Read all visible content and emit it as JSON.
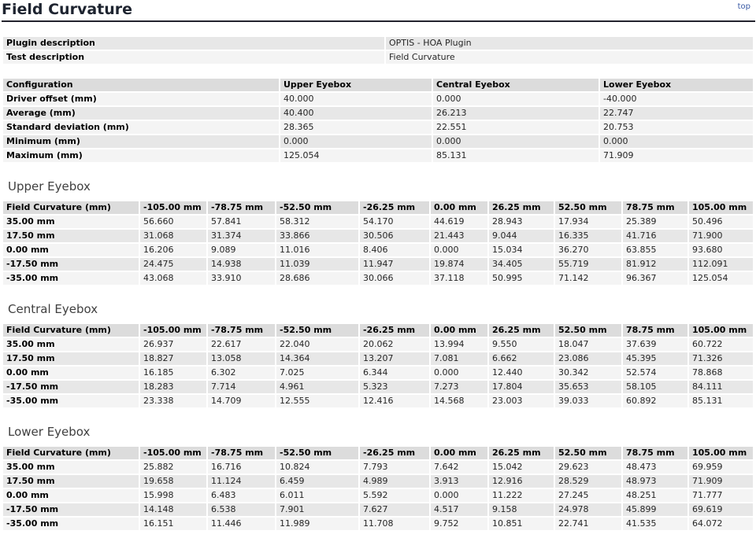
{
  "page": {
    "title": "Field Curvature",
    "top_link": "top"
  },
  "colors": {
    "title": "#1e2430",
    "link": "#3b5ba5",
    "header_row_bg": "#dcdcdc",
    "row_light_bg": "#f4f4f4",
    "row_dark_bg": "#e7e7e7"
  },
  "description_table": {
    "rows": [
      {
        "label": "Plugin description",
        "values": [
          "OPTIS - HOA Plugin"
        ]
      },
      {
        "label": "Test description",
        "values": [
          "Field Curvature"
        ]
      }
    ]
  },
  "configuration_table": {
    "headers": [
      "Configuration",
      "Upper Eyebox",
      "Central Eyebox",
      "Lower Eyebox"
    ],
    "rows": [
      {
        "label": "Driver offset (mm)",
        "values": [
          "40.000",
          "0.000",
          "-40.000"
        ]
      },
      {
        "label": "Average (mm)",
        "values": [
          "40.400",
          "26.213",
          "22.747"
        ]
      },
      {
        "label": "Standard deviation (mm)",
        "values": [
          "28.365",
          "22.551",
          "20.753"
        ]
      },
      {
        "label": "Minimum (mm)",
        "values": [
          "0.000",
          "0.000",
          "0.000"
        ]
      },
      {
        "label": "Maximum (mm)",
        "values": [
          "125.054",
          "85.131",
          "71.909"
        ]
      }
    ]
  },
  "sections": [
    {
      "heading": "Upper Eyebox",
      "headers": [
        "Field Curvature (mm)",
        "-105.00 mm",
        "-78.75 mm",
        "-52.50 mm",
        "-26.25 mm",
        "0.00 mm",
        "26.25 mm",
        "52.50 mm",
        "78.75 mm",
        "105.00 mm"
      ],
      "rows": [
        {
          "label": "35.00 mm",
          "values": [
            "56.660",
            "57.841",
            "58.312",
            "54.170",
            "44.619",
            "28.943",
            "17.934",
            "25.389",
            "50.496"
          ]
        },
        {
          "label": "17.50 mm",
          "values": [
            "31.068",
            "31.374",
            "33.866",
            "30.506",
            "21.443",
            "9.044",
            "16.335",
            "41.716",
            "71.900"
          ]
        },
        {
          "label": "0.00 mm",
          "values": [
            "16.206",
            "9.089",
            "11.016",
            "8.406",
            "0.000",
            "15.034",
            "36.270",
            "63.855",
            "93.680"
          ]
        },
        {
          "label": "-17.50 mm",
          "values": [
            "24.475",
            "14.938",
            "11.039",
            "11.947",
            "19.874",
            "34.405",
            "55.719",
            "81.912",
            "112.091"
          ]
        },
        {
          "label": "-35.00 mm",
          "values": [
            "43.068",
            "33.910",
            "28.686",
            "30.066",
            "37.118",
            "50.995",
            "71.142",
            "96.367",
            "125.054"
          ]
        }
      ]
    },
    {
      "heading": "Central Eyebox",
      "headers": [
        "Field Curvature (mm)",
        "-105.00 mm",
        "-78.75 mm",
        "-52.50 mm",
        "-26.25 mm",
        "0.00 mm",
        "26.25 mm",
        "52.50 mm",
        "78.75 mm",
        "105.00 mm"
      ],
      "rows": [
        {
          "label": "35.00 mm",
          "values": [
            "26.937",
            "22.617",
            "22.040",
            "20.062",
            "13.994",
            "9.550",
            "18.047",
            "37.639",
            "60.722"
          ]
        },
        {
          "label": "17.50 mm",
          "values": [
            "18.827",
            "13.058",
            "14.364",
            "13.207",
            "7.081",
            "6.662",
            "23.086",
            "45.395",
            "71.326"
          ]
        },
        {
          "label": "0.00 mm",
          "values": [
            "16.185",
            "6.302",
            "7.025",
            "6.344",
            "0.000",
            "12.440",
            "30.342",
            "52.574",
            "78.868"
          ]
        },
        {
          "label": "-17.50 mm",
          "values": [
            "18.283",
            "7.714",
            "4.961",
            "5.323",
            "7.273",
            "17.804",
            "35.653",
            "58.105",
            "84.111"
          ]
        },
        {
          "label": "-35.00 mm",
          "values": [
            "23.338",
            "14.709",
            "12.555",
            "12.416",
            "14.568",
            "23.003",
            "39.033",
            "60.892",
            "85.131"
          ]
        }
      ]
    },
    {
      "heading": "Lower Eyebox",
      "headers": [
        "Field Curvature (mm)",
        "-105.00 mm",
        "-78.75 mm",
        "-52.50 mm",
        "-26.25 mm",
        "0.00 mm",
        "26.25 mm",
        "52.50 mm",
        "78.75 mm",
        "105.00 mm"
      ],
      "rows": [
        {
          "label": "35.00 mm",
          "values": [
            "25.882",
            "16.716",
            "10.824",
            "7.793",
            "7.642",
            "15.042",
            "29.623",
            "48.473",
            "69.959"
          ]
        },
        {
          "label": "17.50 mm",
          "values": [
            "19.658",
            "11.124",
            "6.459",
            "4.989",
            "3.913",
            "12.916",
            "28.529",
            "48.973",
            "71.909"
          ]
        },
        {
          "label": "0.00 mm",
          "values": [
            "15.998",
            "6.483",
            "6.011",
            "5.592",
            "0.000",
            "11.222",
            "27.245",
            "48.251",
            "71.777"
          ]
        },
        {
          "label": "-17.50 mm",
          "values": [
            "14.148",
            "6.538",
            "7.901",
            "7.627",
            "4.517",
            "9.158",
            "24.978",
            "45.899",
            "69.619"
          ]
        },
        {
          "label": "-35.00 mm",
          "values": [
            "16.151",
            "11.446",
            "11.989",
            "11.708",
            "9.752",
            "10.851",
            "22.741",
            "41.535",
            "64.072"
          ]
        }
      ]
    }
  ]
}
